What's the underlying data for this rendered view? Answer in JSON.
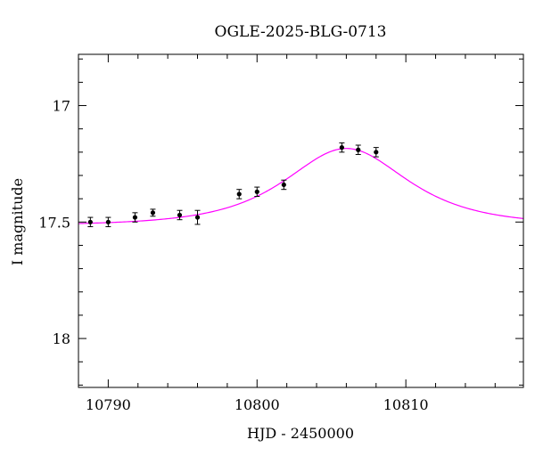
{
  "chart_data": {
    "type": "scatter",
    "title": "OGLE-2025-BLG-0713",
    "xlabel": "HJD - 2450000",
    "ylabel": "I magnitude",
    "xlim": [
      10788.0,
      10817.9
    ],
    "ylim": [
      18.21,
      16.78
    ],
    "y_inverted": true,
    "x_major_ticks": [
      10790,
      10800,
      10810
    ],
    "x_tick_labels": [
      "10790",
      "10800",
      "10810"
    ],
    "x_minor_ticks": [
      10788,
      10792,
      10794,
      10796,
      10798,
      10802,
      10804,
      10806,
      10808,
      10812,
      10814,
      10816
    ],
    "y_major_ticks": [
      17,
      17.5,
      18
    ],
    "y_tick_labels": [
      "17",
      "17.5",
      "18"
    ],
    "y_minor_ticks": [
      16.8,
      16.9,
      17.1,
      17.2,
      17.3,
      17.4,
      17.6,
      17.7,
      17.8,
      17.9,
      18.1,
      18.2
    ],
    "grid": false,
    "legend": "none",
    "colors": {
      "points": "#000000",
      "model": "#ff00ff",
      "axes": "#000000"
    },
    "series": [
      {
        "type": "scatter_errorbars",
        "points": [
          {
            "x": 10788.8,
            "y": 17.5,
            "err": 0.02
          },
          {
            "x": 10790.0,
            "y": 17.5,
            "err": 0.02
          },
          {
            "x": 10791.8,
            "y": 17.48,
            "err": 0.02
          },
          {
            "x": 10793.0,
            "y": 17.46,
            "err": 0.015
          },
          {
            "x": 10794.8,
            "y": 17.47,
            "err": 0.02
          },
          {
            "x": 10796.0,
            "y": 17.48,
            "err": 0.03
          },
          {
            "x": 10798.8,
            "y": 17.38,
            "err": 0.02
          },
          {
            "x": 10800.0,
            "y": 17.37,
            "err": 0.02
          },
          {
            "x": 10801.8,
            "y": 17.34,
            "err": 0.02
          },
          {
            "x": 10805.7,
            "y": 17.18,
            "err": 0.02
          },
          {
            "x": 10806.8,
            "y": 17.19,
            "err": 0.02
          },
          {
            "x": 10808.0,
            "y": 17.2,
            "err": 0.02
          }
        ]
      },
      {
        "type": "line",
        "model": "point-lens fit",
        "params": {
          "t0": 10806.0,
          "tE": 5.0,
          "u0": 0.98,
          "baseline": 17.515
        },
        "x_range": [
          10788.0,
          10817.9
        ]
      }
    ]
  }
}
